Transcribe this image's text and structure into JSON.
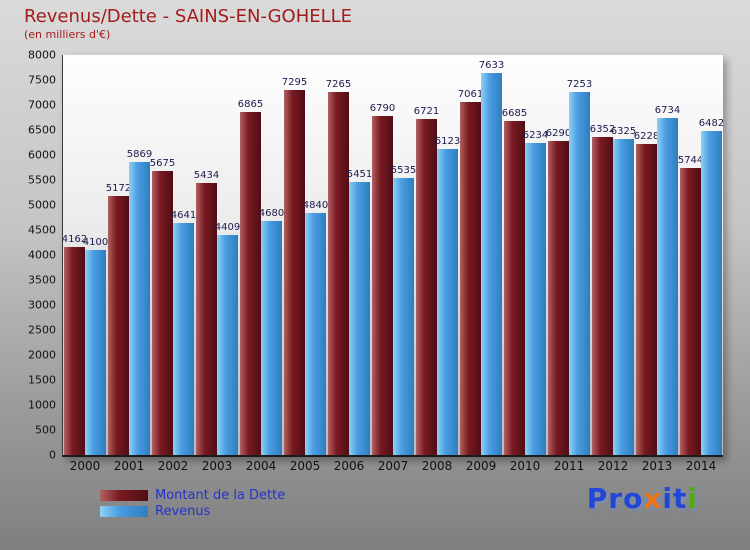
{
  "header": {
    "title": "Revenus/Dette - SAINS-EN-GOHELLE",
    "subtitle": "(en milliers d'€)"
  },
  "legend": {
    "items": [
      {
        "label": "Montant de la Dette"
      },
      {
        "label": "Revenus"
      }
    ]
  },
  "logo": {
    "letters": [
      {
        "ch": "P",
        "color": "#2247d6"
      },
      {
        "ch": "r",
        "color": "#2247d6"
      },
      {
        "ch": "o",
        "color": "#2247d6"
      },
      {
        "ch": "x",
        "color": "#ee7512"
      },
      {
        "ch": "i",
        "color": "#2247d6"
      },
      {
        "ch": "t",
        "color": "#2247d6"
      },
      {
        "ch": "i",
        "color": "#55aa11"
      }
    ]
  },
  "colors": {
    "title": "#a31c1c",
    "value_label": "#1b1b4e",
    "legend_text": "#2233cc",
    "dette_light": "#b06262",
    "dette_mid": "#7a1a22",
    "dette_dark": "#4f0e15",
    "revenus_light": "#8fd0f5",
    "revenus_mid": "#4a9de2",
    "revenus_dark": "#2f7dc0"
  },
  "chart_data": {
    "type": "bar",
    "title": "Revenus/Dette - SAINS-EN-GOHELLE",
    "subtitle": "(en milliers d'€)",
    "categories": [
      "2000",
      "2001",
      "2002",
      "2003",
      "2004",
      "2005",
      "2006",
      "2007",
      "2008",
      "2009",
      "2010",
      "2011",
      "2012",
      "2013",
      "2014"
    ],
    "series": [
      {
        "name": "Montant de la Dette",
        "values": [
          4162,
          5172,
          5675,
          5434,
          6865,
          7295,
          7265,
          6790,
          6721,
          7061,
          6685,
          6290,
          6352,
          6228,
          5744
        ]
      },
      {
        "name": "Revenus",
        "values": [
          4100,
          5869,
          4641,
          4409,
          4680,
          4840,
          5451,
          5535,
          6123,
          7633,
          6234,
          7253,
          6325,
          6734,
          6482
        ]
      }
    ],
    "ylim": [
      0,
      8000
    ],
    "ytick_step": 500,
    "grid": false,
    "legend_position": "bottom-left"
  }
}
